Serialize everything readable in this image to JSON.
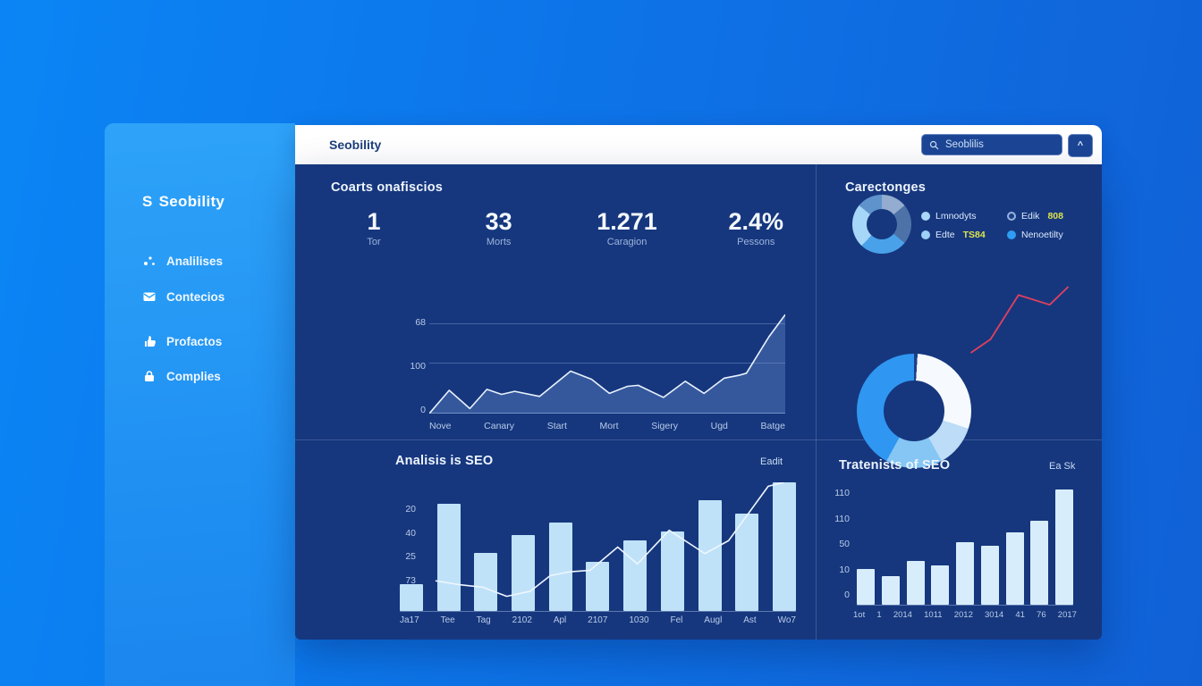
{
  "colors": {
    "background_left": "#0b85f5",
    "background_right": "#1161d6",
    "sidebar": "#2ea3f8",
    "panel": "#16377e",
    "topbar": "#ffffff",
    "accent_yellow": "#dde24e",
    "trend_red": "#e2405e",
    "bar_pale": "#bfe2f8",
    "text_muted": "#9cb4dc"
  },
  "topbar": {
    "title": "Seobility",
    "search_value": "Seoblilis",
    "caret_label": "^"
  },
  "sidebar": {
    "logo": "S",
    "title": "Seobility",
    "items": [
      {
        "label": "Analilises",
        "icon": "scatter-icon"
      },
      {
        "label": "Contecios",
        "icon": "mail-icon"
      },
      {
        "label": "Profactos",
        "icon": "thumb-icon"
      },
      {
        "label": "Complies",
        "icon": "lock-icon"
      }
    ]
  },
  "stats": {
    "title": "Coarts onafiscios",
    "items": [
      {
        "value": "1",
        "label": "Tor"
      },
      {
        "value": "33",
        "label": "Morts"
      },
      {
        "value": "1.271",
        "label": "Caragion"
      },
      {
        "value": "2.4%",
        "label": "Pessons"
      }
    ]
  },
  "categories_panel": {
    "title": "Carectonges",
    "legend": [
      {
        "label": "Lmnodyts",
        "highlight": "",
        "color": "#a9d7f8"
      },
      {
        "label": "Edik",
        "highlight": "808",
        "color": "#1c3f8a"
      },
      {
        "label": "Edte",
        "highlight": "TS84",
        "color": "#9fd0f6"
      },
      {
        "label": "Nenoetilty",
        "highlight": "",
        "color": "#2f9df3"
      }
    ]
  },
  "chart_data": [
    {
      "id": "traffic-line",
      "type": "area",
      "title": "",
      "yticks": [
        "68",
        "100",
        "0"
      ],
      "categories": [
        "Nove",
        "Canary",
        "Start",
        "Mort",
        "Sigery",
        "Ugd",
        "Batge"
      ],
      "points": [
        [
          0,
          100
        ],
        [
          5.6,
          77
        ],
        [
          11.4,
          95
        ],
        [
          16.2,
          76
        ],
        [
          20.3,
          81
        ],
        [
          24,
          78
        ],
        [
          31,
          83
        ],
        [
          39.7,
          58
        ],
        [
          45.6,
          66
        ],
        [
          50.6,
          80
        ],
        [
          55.7,
          73
        ],
        [
          58.7,
          72
        ],
        [
          65.8,
          84
        ],
        [
          71.9,
          68
        ],
        [
          77.2,
          80
        ],
        [
          82.8,
          65
        ],
        [
          87.1,
          62
        ],
        [
          89.1,
          60
        ],
        [
          95.4,
          24
        ],
        [
          100,
          2
        ]
      ],
      "line_color": "#e9f2fc",
      "area_color": "rgba(125,165,230,0.30)"
    },
    {
      "id": "categories-donut",
      "type": "donut",
      "slices": [
        {
          "color": "#93accf",
          "value": 14
        },
        {
          "color": "#4d72a8",
          "value": 22
        },
        {
          "color": "#49a2e9",
          "value": 26
        },
        {
          "color": "#a6d6f8",
          "value": 24
        },
        {
          "color": "#5e93cc",
          "value": 14
        }
      ]
    },
    {
      "id": "big-donut",
      "type": "donut",
      "slices": [
        {
          "color": "#1c3f8a",
          "value": 1
        },
        {
          "color": "#f6fafe",
          "value": 29
        },
        {
          "color": "#bcdcf7",
          "value": 12
        },
        {
          "color": "#85c6f4",
          "value": 16
        },
        {
          "color": "#2f97f2",
          "value": 42
        }
      ],
      "trend_points": [
        [
          3,
          94
        ],
        [
          22,
          76
        ],
        [
          49,
          17
        ],
        [
          79,
          30
        ],
        [
          97,
          6
        ]
      ],
      "trend_color": "#e2405e"
    },
    {
      "id": "analisis-bars",
      "type": "bar+line",
      "title": "Analisis is SEO",
      "action": "Eadit",
      "yticks": [
        "20",
        "40",
        "25",
        "73"
      ],
      "categories": [
        "Ja17",
        "Tee",
        "Tag",
        "2102",
        "Apl",
        "2107",
        "1030",
        "Fel",
        "Augl",
        "Ast",
        "Wo7"
      ],
      "values": [
        21,
        83,
        45,
        59,
        69,
        38,
        55,
        62,
        86,
        76,
        100
      ],
      "line_points": [
        [
          9,
          76
        ],
        [
          15,
          79
        ],
        [
          21,
          81
        ],
        [
          27,
          88
        ],
        [
          33,
          84
        ],
        [
          38,
          72
        ],
        [
          43,
          69
        ],
        [
          48,
          68
        ],
        [
          55,
          50
        ],
        [
          60,
          63
        ],
        [
          68,
          37
        ],
        [
          77,
          55
        ],
        [
          83,
          45
        ],
        [
          93,
          3
        ],
        [
          97,
          0
        ]
      ],
      "bar_color": "#bfe2f8",
      "line_color": "#eef6fe",
      "ylim": [
        0,
        100
      ]
    },
    {
      "id": "tratenish-bars",
      "type": "bar",
      "title": "Tratenists of SEO",
      "action": "Ea Sk",
      "yticks": [
        "110",
        "110",
        "50",
        "10",
        "0"
      ],
      "categories": [
        "1ot",
        "1",
        "2014",
        "1011",
        "2012",
        "3014",
        "41",
        "76",
        "2017"
      ],
      "values": [
        31,
        25,
        38,
        34,
        54,
        51,
        63,
        73,
        100
      ],
      "bar_color": "#d8edfb",
      "ylim": [
        0,
        120
      ]
    }
  ]
}
